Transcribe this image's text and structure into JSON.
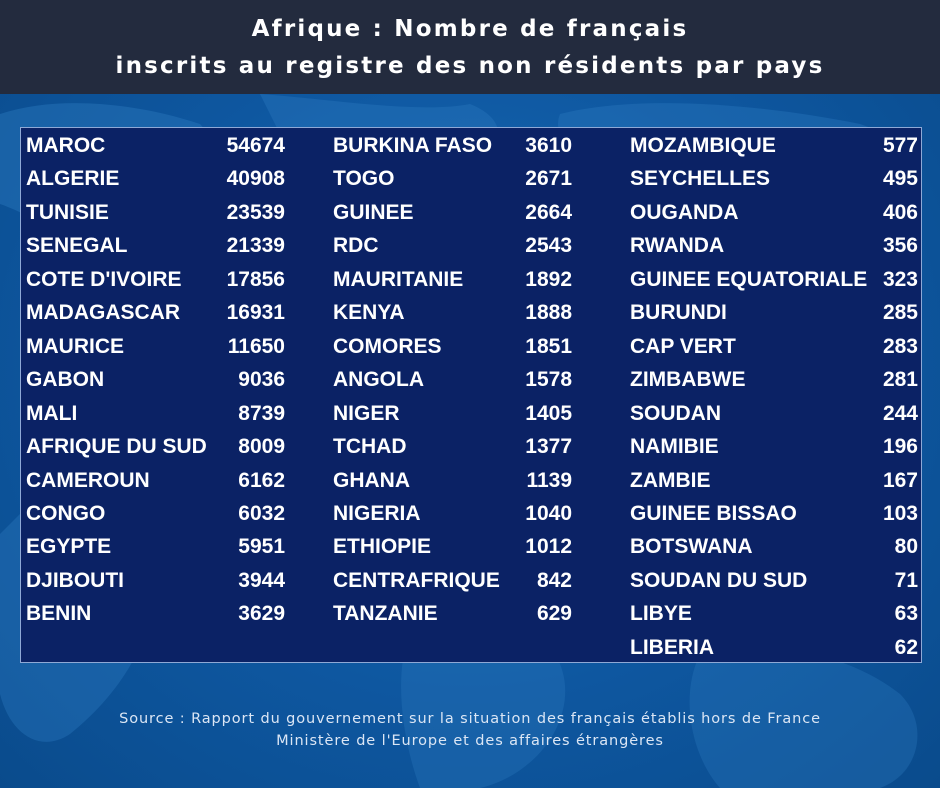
{
  "header": {
    "title_line1": "Afrique : Nombre de français",
    "title_line2": "inscrits au registre des non résidents par pays"
  },
  "footer": {
    "source_line1": "Source : Rapport du gouvernement sur la situation des français établis hors de France",
    "source_line2": "Ministère de l'Europe et des affaires étrangères"
  },
  "chart_data": {
    "type": "table",
    "title": "Afrique : Nombre de français inscrits au registre des non résidents par pays",
    "columns": [
      [
        {
          "country": "MAROC",
          "value": "54674"
        },
        {
          "country": "ALGERIE",
          "value": "40908"
        },
        {
          "country": "TUNISIE",
          "value": "23539"
        },
        {
          "country": "SENEGAL",
          "value": "21339"
        },
        {
          "country": "COTE D'IVOIRE",
          "value": "17856"
        },
        {
          "country": "MADAGASCAR",
          "value": "16931"
        },
        {
          "country": "MAURICE",
          "value": "11650"
        },
        {
          "country": "GABON",
          "value": "9036"
        },
        {
          "country": "MALI",
          "value": "8739"
        },
        {
          "country": "AFRIQUE DU SUD",
          "value": "8009"
        },
        {
          "country": "CAMEROUN",
          "value": "6162"
        },
        {
          "country": "CONGO",
          "value": "6032"
        },
        {
          "country": "EGYPTE",
          "value": "5951"
        },
        {
          "country": "DJIBOUTI",
          "value": "3944"
        },
        {
          "country": "BENIN",
          "value": "3629"
        }
      ],
      [
        {
          "country": "BURKINA FASO",
          "value": "3610"
        },
        {
          "country": "TOGO",
          "value": "2671"
        },
        {
          "country": "GUINEE",
          "value": "2664"
        },
        {
          "country": "RDC",
          "value": "2543"
        },
        {
          "country": "MAURITANIE",
          "value": "1892"
        },
        {
          "country": "KENYA",
          "value": "1888"
        },
        {
          "country": "COMORES",
          "value": "1851"
        },
        {
          "country": "ANGOLA",
          "value": "1578"
        },
        {
          "country": "NIGER",
          "value": "1405"
        },
        {
          "country": "TCHAD",
          "value": "1377"
        },
        {
          "country": "GHANA",
          "value": "1139"
        },
        {
          "country": "NIGERIA",
          "value": "1040"
        },
        {
          "country": "ETHIOPIE",
          "value": "1012"
        },
        {
          "country": "CENTRAFRIQUE",
          "value": "842"
        },
        {
          "country": "TANZANIE",
          "value": "629"
        }
      ],
      [
        {
          "country": "MOZAMBIQUE",
          "value": "577"
        },
        {
          "country": "SEYCHELLES",
          "value": "495"
        },
        {
          "country": "OUGANDA",
          "value": "406"
        },
        {
          "country": "RWANDA",
          "value": "356"
        },
        {
          "country": "GUINEE EQUATORIALE",
          "value": "323"
        },
        {
          "country": "BURUNDI",
          "value": "285"
        },
        {
          "country": "CAP VERT",
          "value": "283"
        },
        {
          "country": "ZIMBABWE",
          "value": "281"
        },
        {
          "country": "SOUDAN",
          "value": "244"
        },
        {
          "country": "NAMIBIE",
          "value": "196"
        },
        {
          "country": "ZAMBIE",
          "value": "167"
        },
        {
          "country": "GUINEE BISSAO",
          "value": "103"
        },
        {
          "country": "BOTSWANA",
          "value": "80"
        },
        {
          "country": "SOUDAN DU SUD",
          "value": "71"
        },
        {
          "country": "LIBYE",
          "value": "63"
        },
        {
          "country": "LIBERIA",
          "value": "62"
        }
      ]
    ]
  },
  "colors": {
    "header_bg": "#232b3e",
    "table_bg": "#0b2265",
    "page_bg": "#0f5aa0",
    "text": "#ffffff"
  }
}
